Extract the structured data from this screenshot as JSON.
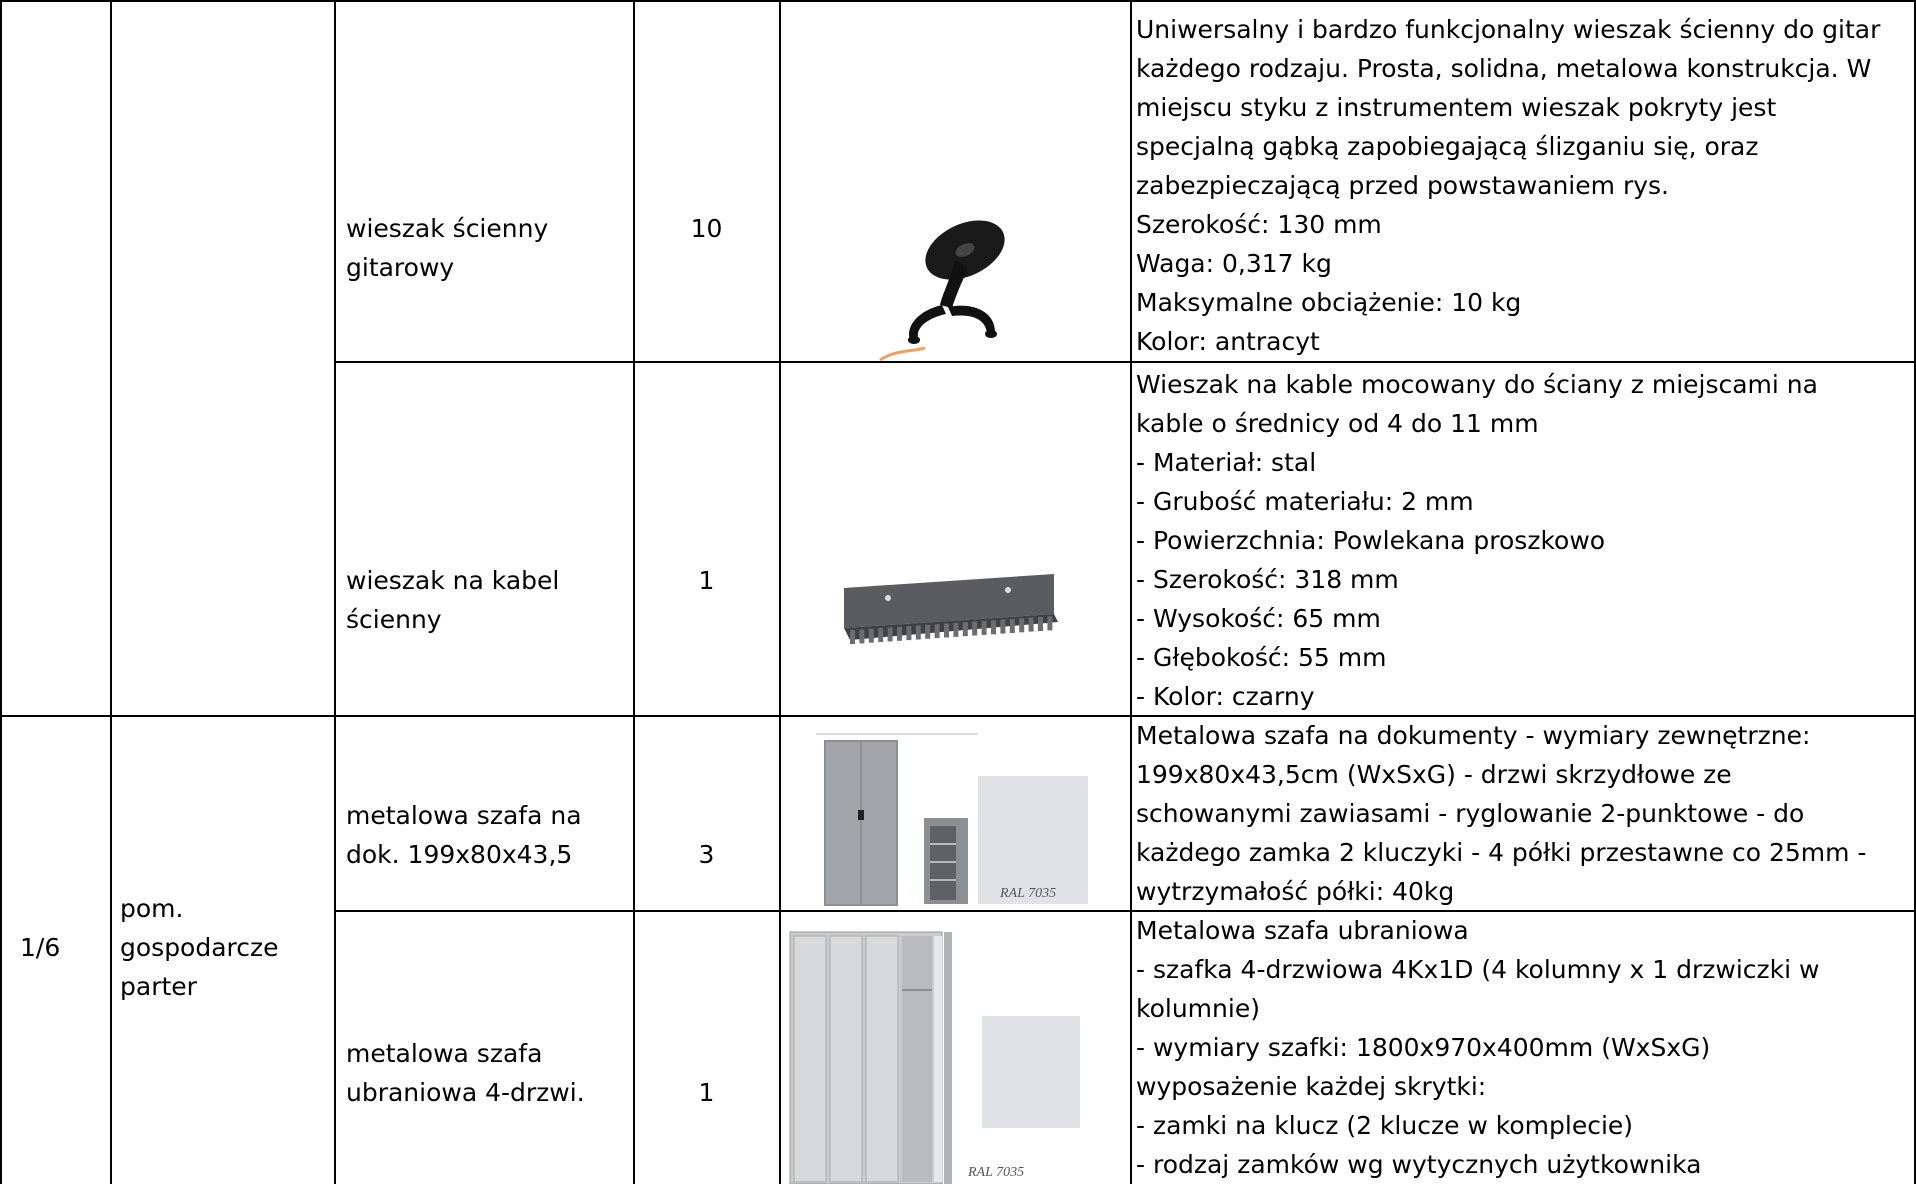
{
  "rows": [
    {
      "no": "",
      "room": [],
      "name": [
        "wieszak ścienny",
        "gitarowy"
      ],
      "qty": "10",
      "image": "guitar-hanger",
      "desc": [
        "Uniwersalny i bardzo funkcjonalny wieszak ścienny do gitar",
        "każdego rodzaju. Prosta, solidna, metalowa konstrukcja. W",
        "miejscu styku z instrumentem wieszak pokryty jest",
        "specjalną gąbką zapobiegającą ślizganiu się, oraz",
        "zabezpieczającą przed powstawaniem rys.",
        "Szerokość: 130 mm",
        "Waga: 0,317 kg",
        "Maksymalne obciążenie: 10 kg",
        "Kolor: antracyt"
      ]
    },
    {
      "no": "",
      "room": [],
      "name": [
        "wieszak na kabel",
        "ścienny"
      ],
      "qty": "1",
      "image": "cable-hanger",
      "desc": [
        "Wieszak na kable mocowany do ściany z miejscami na",
        "kable o średnicy od 4 do 11 mm",
        "- Materiał: stal",
        "- Grubość materiału: 2 mm",
        "- Powierzchnia: Powlekana proszkowo",
        "- Szerokość: 318 mm",
        "- Wysokość: 65 mm",
        "- Głębokość: 55 mm",
        "- Kolor: czarny"
      ]
    },
    {
      "no": "1/6",
      "room": [
        "pom.",
        "gospodarcze",
        "parter"
      ],
      "name": [
        "metalowa szafa na",
        "dok. 199x80x43,5"
      ],
      "qty": "3",
      "image": "document-cabinet",
      "image_caption": "RAL 7035",
      "desc": [
        "Metalowa szafa na dokumenty - wymiary zewnętrzne:",
        "199x80x43,5cm (WxSxG) - drzwi skrzydłowe ze",
        "schowanymi zawiasami - ryglowanie 2-punktowe - do",
        "każdego zamka 2 kluczyki - 4 półki przestawne co 25mm -",
        "wytrzymałość półki: 40kg"
      ]
    },
    {
      "name": [
        "metalowa szafa",
        "ubraniowa 4-drzwi."
      ],
      "qty": "1",
      "image": "clothes-locker",
      "image_caption": "RAL 7035",
      "desc": [
        "Metalowa szafa ubraniowa",
        "- szafka 4-drzwiowa 4Kx1D (4 kolumny x 1 drzwiczki w",
        "kolumnie)",
        "- wymiary szafki: 1800x970x400mm (WxSxG)",
        "wyposażenie każdej skrytki:",
        "- zamki na klucz (2 klucze w komplecie)",
        "- rodzaj zamków wg wytycznych użytkownika"
      ]
    }
  ],
  "colors": {
    "border": "#000000",
    "cabinet": "#9a9da1",
    "swatch": "#dfe3e6"
  }
}
